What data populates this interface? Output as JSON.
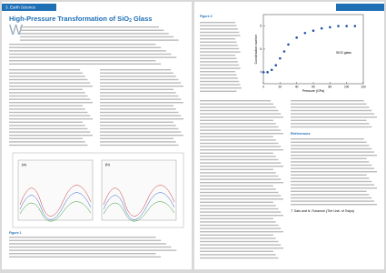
{
  "header": {
    "section": "3. Earth Science",
    "title": "High-Pressure Transformation of SiO",
    "title_sub": "2",
    "title_end": " Glass"
  },
  "figure1": {
    "panel_a": "(a)",
    "panel_b": "(b)",
    "caption_label": "Figure 1"
  },
  "figure2": {
    "caption_label": "Figure 2",
    "legend": "SiO2 glass",
    "chart_data": {
      "type": "scatter",
      "x_label": "Pressure (GPa)",
      "y_label": "Coordination number",
      "x": [
        0,
        5,
        10,
        15,
        20,
        25,
        30,
        40,
        50,
        60,
        70,
        80,
        90,
        100,
        110
      ],
      "values": [
        4.0,
        4.0,
        4.1,
        4.3,
        4.6,
        4.9,
        5.2,
        5.5,
        5.7,
        5.8,
        5.9,
        5.95,
        6.0,
        6.0,
        6.0
      ],
      "color": "#2255aa",
      "xlim": [
        0,
        120
      ],
      "xticks": [
        0,
        20,
        40,
        60,
        80,
        100,
        120
      ],
      "ylim": [
        3.5,
        6.5
      ],
      "yticks": [
        4,
        5,
        6
      ]
    }
  },
  "references": {
    "title": "References"
  },
  "authors": "T. Sato and N. Funamori (The Univ. of Tokyo)"
}
